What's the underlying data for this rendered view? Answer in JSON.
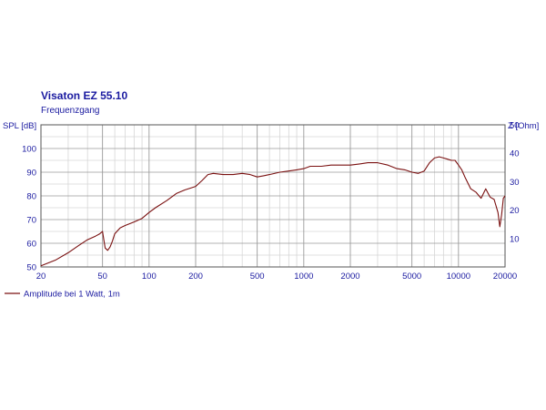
{
  "chart_data": {
    "type": "line",
    "title": "Visaton EZ 55.10",
    "subtitle": "Frequenzgang",
    "ylabel_left": "SPL [dB]",
    "ylabel_right": "Z [Ohm]",
    "x_scale": "log",
    "xlim": [
      20,
      20000
    ],
    "ylim_left": [
      50,
      110
    ],
    "ylim_right": [
      0,
      50
    ],
    "x_ticks": [
      "20",
      "50",
      "100",
      "200",
      "500",
      "1000",
      "2000",
      "5000",
      "10000",
      "20000"
    ],
    "y_ticks_left": [
      "50",
      "60",
      "70",
      "80",
      "90",
      "100"
    ],
    "y_ticks_right": [
      "10",
      "20",
      "30",
      "40",
      "50"
    ],
    "grid": true,
    "legend_position": "bottom-left",
    "series": [
      {
        "name": "Amplitude bei 1 Watt, 1m",
        "axis": "left",
        "color": "#7a1010",
        "x": [
          20,
          25,
          30,
          35,
          40,
          45,
          48,
          50,
          52,
          54,
          56,
          58,
          60,
          65,
          70,
          80,
          90,
          100,
          110,
          130,
          150,
          170,
          200,
          220,
          240,
          260,
          300,
          350,
          400,
          450,
          500,
          550,
          600,
          700,
          800,
          900,
          1000,
          1100,
          1300,
          1500,
          1800,
          2000,
          2300,
          2600,
          3000,
          3500,
          4000,
          4500,
          5000,
          5500,
          6000,
          6500,
          7000,
          7500,
          8000,
          8500,
          9000,
          9500,
          10000,
          10500,
          11000,
          12000,
          13000,
          14000,
          15000,
          16000,
          17000,
          18000,
          18500,
          19000,
          19500,
          20000
        ],
        "y": [
          50.5,
          53,
          56,
          59,
          61.5,
          63,
          64,
          65,
          58,
          57,
          58.5,
          61,
          64,
          66.5,
          67.5,
          69,
          70.5,
          73,
          75,
          78,
          81,
          82.5,
          84,
          86.5,
          89,
          89.5,
          89,
          89,
          89.5,
          89,
          88,
          88.5,
          89,
          90,
          90.5,
          91,
          91.5,
          92.5,
          92.5,
          93,
          93,
          93,
          93.5,
          94,
          94,
          93,
          91.5,
          91,
          90,
          89.5,
          90.5,
          94,
          96,
          96.5,
          96,
          95.5,
          95,
          95,
          93,
          91,
          88,
          83,
          81.5,
          79,
          83,
          79.5,
          78.5,
          73,
          67,
          72,
          79,
          80
        ]
      }
    ]
  }
}
